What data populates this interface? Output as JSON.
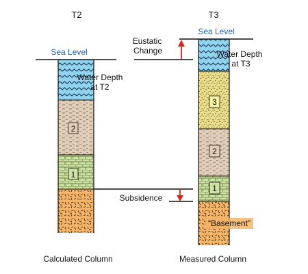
{
  "headers": {
    "left": "T2",
    "right": "T3"
  },
  "left_column": {
    "sea_level": "Sea Level",
    "water_depth": [
      "Water Depth",
      "at T2"
    ],
    "layer_2": "2",
    "layer_1": "1",
    "caption": "Calculated Column"
  },
  "right_column": {
    "sea_level": "Sea Level",
    "water_depth": [
      "Water Depth",
      "at T3"
    ],
    "layer_3": "3",
    "layer_2": "2",
    "layer_1": "1",
    "basement": "“Basement”",
    "caption": "Measured Column"
  },
  "annotations": {
    "eustatic": [
      "Eustatic",
      "Change"
    ],
    "subsidence": "Subsidence"
  },
  "colors": {
    "water": "#8fd3ee",
    "layer_2": "#e2cdb8",
    "layer_1": "#cfe2a3",
    "layer_3": "#ece08a",
    "basement": "#f7b567",
    "label_box": "#f7f39c",
    "sea_level_text": "#1f5fa8",
    "arrow": "#e0231d"
  }
}
